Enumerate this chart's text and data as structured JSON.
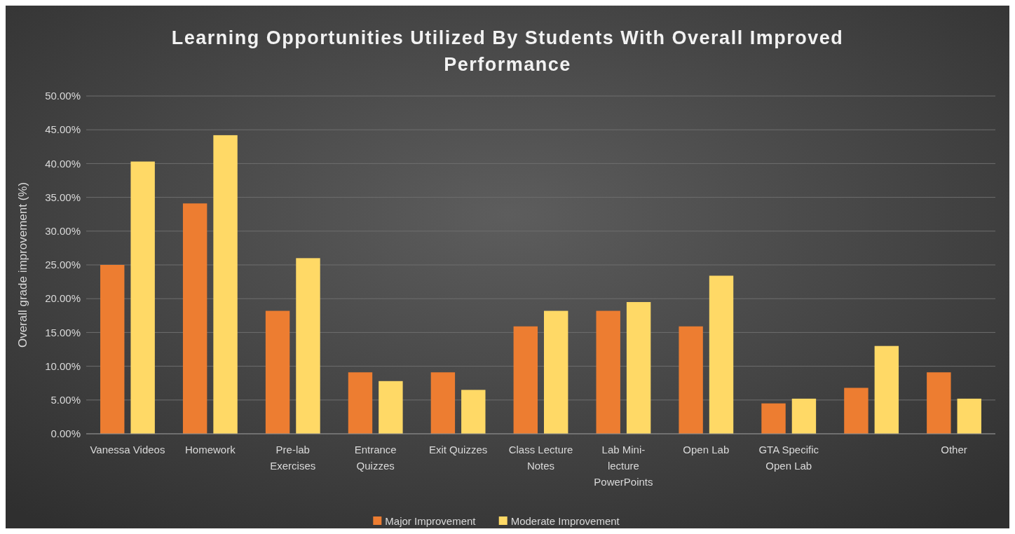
{
  "chart_data": {
    "type": "bar",
    "title": "Learning Opportunities Utilized By Students With Overall Improved Performance",
    "ylabel": "Overall grade improvement (%)",
    "categories": [
      "Vanessa Videos",
      "Homework",
      "Pre-lab Exercises",
      "Entrance Quizzes",
      "Exit Quizzes",
      "Class Lecture Notes",
      "Lab Mini-lecture PowerPoints",
      "Open Lab",
      "GTA Specific Open Lab",
      null,
      "Other"
    ],
    "series": [
      {
        "name": "Major Improvement",
        "color": "#ed7d31",
        "values": [
          25.0,
          34.1,
          18.2,
          9.1,
          9.1,
          15.9,
          18.2,
          15.9,
          4.5,
          6.8,
          9.1
        ]
      },
      {
        "name": "Moderate Improvement",
        "color": "#ffd966",
        "values": [
          40.3,
          44.2,
          26.0,
          7.8,
          6.5,
          18.2,
          19.5,
          23.4,
          5.2,
          13.0,
          5.2
        ]
      }
    ],
    "ylim": [
      0,
      50
    ],
    "yticks": [
      {
        "value": 0,
        "label": "0.00%"
      },
      {
        "value": 5,
        "label": "5.00%"
      },
      {
        "value": 10,
        "label": "10.00%"
      },
      {
        "value": 15,
        "label": "15.00%"
      },
      {
        "value": 20,
        "label": "20.00%"
      },
      {
        "value": 25,
        "label": "25.00%"
      },
      {
        "value": 30,
        "label": "30.00%"
      },
      {
        "value": 35,
        "label": "35.00%"
      },
      {
        "value": 40,
        "label": "40.00%"
      },
      {
        "value": 45,
        "label": "45.00%"
      },
      {
        "value": 50,
        "label": "50.00%"
      }
    ],
    "grid": "y",
    "legend": "bottom"
  }
}
